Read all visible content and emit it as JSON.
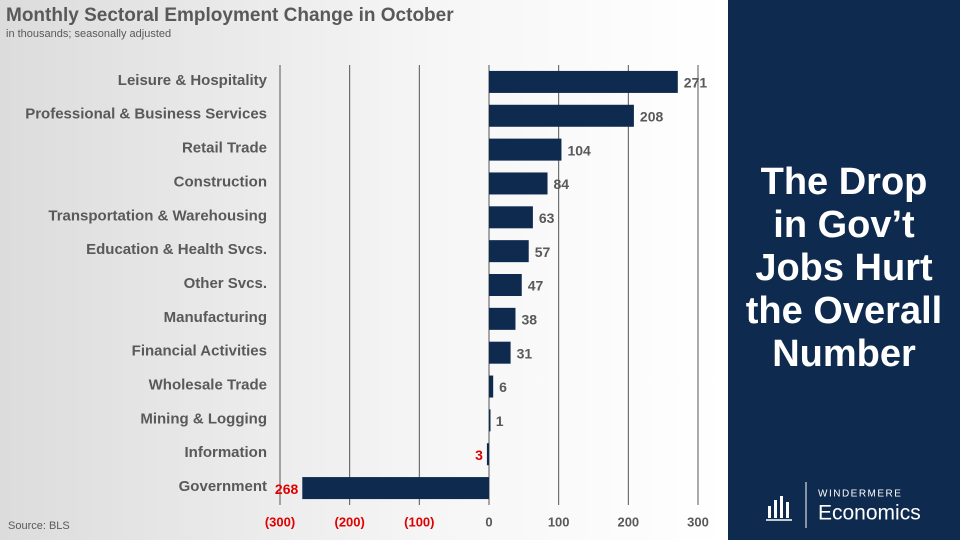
{
  "chart_data": {
    "type": "barh",
    "title": "Monthly Sectoral Employment Change in October",
    "subtitle": "in thousands; seasonally adjusted",
    "source": "Source: BLS",
    "categories": [
      "Leisure & Hospitality",
      "Professional & Business Services",
      "Retail Trade",
      "Construction",
      "Transportation & Warehousing",
      "Education & Health Svcs.",
      "Other Svcs.",
      "Manufacturing",
      "Financial Activities",
      "Wholesale Trade",
      "Mining & Logging",
      "Information",
      "Government"
    ],
    "values": [
      271,
      208,
      104,
      84,
      63,
      57,
      47,
      38,
      31,
      6,
      1,
      -3,
      -268
    ],
    "value_labels": [
      "271",
      "208",
      "104",
      "84",
      "63",
      "57",
      "47",
      "38",
      "31",
      "6",
      "1",
      "3",
      "268"
    ],
    "color": "#0e2a4f",
    "negative_label_color": "#e00000",
    "xlim": [
      -300,
      300
    ],
    "xticks": [
      {
        "value": -300,
        "label": "(300)"
      },
      {
        "value": -200,
        "label": "(200)"
      },
      {
        "value": -100,
        "label": "(100)"
      },
      0,
      100,
      200,
      300
    ],
    "grid": true
  },
  "side_panel": {
    "headline": [
      "The Drop",
      "in Gov’t",
      "Jobs Hurt",
      "the Overall",
      "Number"
    ],
    "brand_top": "WINDERMERE",
    "brand_bottom": "Economics"
  }
}
